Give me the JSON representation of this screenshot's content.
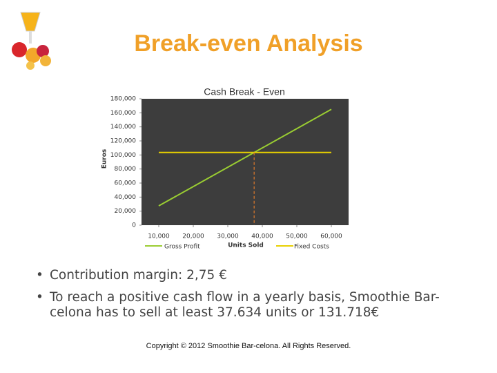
{
  "header": {
    "title": "Break-even Analysis"
  },
  "chart_data": {
    "type": "line",
    "title": "Cash Break - Even",
    "x_label": "Units Sold",
    "y_label": "Euros",
    "x": [
      10000,
      20000,
      30000,
      40000,
      50000,
      60000
    ],
    "series": [
      {
        "name": "Gross Profit",
        "color": "#9acd32",
        "values": [
          27500,
          55000,
          82500,
          110000,
          137500,
          165000
        ]
      },
      {
        "name": "Fixed Costs",
        "color": "#e8d000",
        "values": [
          103500,
          103500,
          103500,
          103500,
          103500,
          103500
        ]
      }
    ],
    "break_even": {
      "x": 37634,
      "y": 103500,
      "color": "#e07a2a"
    },
    "xlim": [
      5000,
      65000
    ],
    "xticks": [
      {
        "value": 10000,
        "label": "10,000"
      },
      {
        "value": 20000,
        "label": "20,000"
      },
      {
        "value": 30000,
        "label": "30,000"
      },
      {
        "value": 40000,
        "label": "40,000"
      },
      {
        "value": 50000,
        "label": "50,000"
      },
      {
        "value": 60000,
        "label": "60,000"
      }
    ],
    "ylim": [
      0,
      180000
    ],
    "yticks": [
      0,
      {
        "value": 20000,
        "label": "20,000"
      },
      {
        "value": 40000,
        "label": "40,000"
      },
      {
        "value": 60000,
        "label": "60,000"
      },
      {
        "value": 80000,
        "label": "80,000"
      },
      {
        "value": 100000,
        "label": "100,000"
      },
      {
        "value": 120000,
        "label": "120,000"
      },
      {
        "value": 140000,
        "label": "140,000"
      },
      {
        "value": 160000,
        "label": "160,000"
      },
      {
        "value": 180000,
        "label": "180,000"
      }
    ],
    "plot_background": "#3d3d3d",
    "legend": "bottom"
  },
  "bullets": [
    "Contribution margin: 2,75 €",
    "To reach a positive cash flow in a yearly basis, Smoothie Bar-celona has to sell at least 37.634 units or 131.718€"
  ],
  "footer": "Copyright © 2012 Smoothie Bar-celona. All Rights Reserved."
}
